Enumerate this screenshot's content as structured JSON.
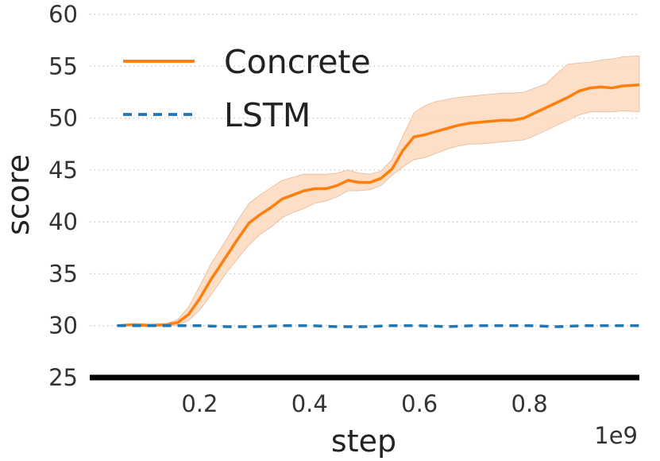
{
  "chart_data": {
    "type": "line",
    "xlabel": "step",
    "ylabel": "score",
    "x_offset_label": "1e9",
    "xlim": [
      0.0,
      1.0
    ],
    "ylim": [
      25,
      60
    ],
    "xticks": [
      0.2,
      0.4,
      0.6,
      0.8
    ],
    "xtick_labels": [
      "0.2",
      "0.4",
      "0.6",
      "0.8"
    ],
    "yticks": [
      25,
      30,
      35,
      40,
      45,
      50,
      55,
      60
    ],
    "ytick_labels": [
      "25",
      "30",
      "35",
      "40",
      "45",
      "50",
      "55",
      "60"
    ],
    "grid": "horizontal dotted",
    "legend_position": "top-left",
    "series": [
      {
        "name": "Concrete",
        "color": "#ff7f0e",
        "band_color": "#fdd9bd",
        "style": "solid",
        "x": [
          0.05,
          0.08,
          0.11,
          0.14,
          0.16,
          0.18,
          0.2,
          0.22,
          0.25,
          0.27,
          0.29,
          0.31,
          0.33,
          0.35,
          0.37,
          0.39,
          0.41,
          0.43,
          0.45,
          0.47,
          0.49,
          0.51,
          0.53,
          0.55,
          0.57,
          0.59,
          0.61,
          0.63,
          0.65,
          0.67,
          0.69,
          0.71,
          0.73,
          0.75,
          0.77,
          0.79,
          0.81,
          0.83,
          0.85,
          0.87,
          0.89,
          0.91,
          0.93,
          0.95,
          0.97,
          1.0
        ],
        "y": [
          30.0,
          30.1,
          30.0,
          30.1,
          30.3,
          31.1,
          32.6,
          34.4,
          36.8,
          38.4,
          39.9,
          40.7,
          41.4,
          42.2,
          42.6,
          43.0,
          43.2,
          43.2,
          43.5,
          44.0,
          43.8,
          43.8,
          44.2,
          45.1,
          46.9,
          48.2,
          48.4,
          48.7,
          49.0,
          49.3,
          49.5,
          49.6,
          49.7,
          49.8,
          49.8,
          50.0,
          50.5,
          51.0,
          51.5,
          52.0,
          52.6,
          52.9,
          53.0,
          52.9,
          53.1,
          53.2
        ],
        "lower": [
          30.0,
          30.0,
          29.9,
          30.0,
          30.0,
          30.5,
          31.5,
          32.9,
          35.2,
          36.5,
          37.8,
          38.8,
          39.5,
          40.4,
          40.9,
          41.3,
          41.8,
          42.0,
          42.4,
          43.0,
          43.0,
          43.1,
          43.5,
          44.5,
          45.3,
          46.0,
          46.2,
          46.6,
          47.0,
          47.3,
          47.5,
          47.5,
          47.6,
          47.7,
          47.8,
          47.9,
          48.3,
          48.8,
          49.3,
          49.8,
          50.3,
          50.6,
          50.6,
          50.6,
          50.7,
          50.6
        ],
        "upper": [
          30.1,
          30.2,
          30.2,
          30.2,
          30.6,
          31.8,
          33.8,
          35.9,
          38.4,
          40.2,
          41.8,
          42.6,
          43.3,
          44.0,
          44.3,
          44.6,
          44.6,
          44.6,
          44.7,
          45.0,
          44.7,
          44.6,
          44.9,
          46.0,
          48.3,
          50.5,
          51.2,
          51.6,
          51.8,
          52.0,
          52.1,
          52.2,
          52.3,
          52.4,
          52.4,
          52.5,
          52.9,
          53.3,
          54.3,
          55.2,
          55.3,
          55.4,
          55.6,
          55.7,
          55.9,
          56.0
        ]
      },
      {
        "name": "LSTM",
        "color": "#1f77b4",
        "style": "dashed",
        "x": [
          0.05,
          0.1,
          0.15,
          0.2,
          0.25,
          0.3,
          0.35,
          0.4,
          0.45,
          0.5,
          0.55,
          0.6,
          0.65,
          0.7,
          0.75,
          0.8,
          0.85,
          0.9,
          0.95,
          1.0
        ],
        "y": [
          30.0,
          30.0,
          30.0,
          30.0,
          29.9,
          29.9,
          30.0,
          30.0,
          29.9,
          29.9,
          30.0,
          30.0,
          29.9,
          30.0,
          30.0,
          30.0,
          29.9,
          30.0,
          30.0,
          30.0
        ]
      }
    ]
  }
}
